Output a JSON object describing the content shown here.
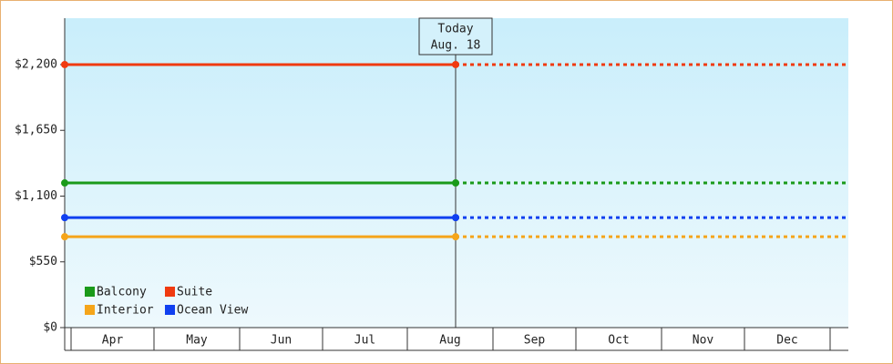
{
  "chart_data": {
    "type": "line",
    "annotation": {
      "title": "Today",
      "date": "Aug. 18"
    },
    "categories": [
      "Apr",
      "May",
      "Jun",
      "Jul",
      "Aug",
      "Sep",
      "Oct",
      "Nov",
      "Dec"
    ],
    "series": [
      {
        "name": "Balcony",
        "color": "#1a9a1a",
        "value": 1210
      },
      {
        "name": "Suite",
        "color": "#f03a10",
        "value": 2200
      },
      {
        "name": "Interior",
        "color": "#f5a51a",
        "value": 760
      },
      {
        "name": "Ocean View",
        "color": "#1040f0",
        "value": 920
      }
    ],
    "ylim": [
      0,
      2588
    ],
    "yticks": [
      {
        "value": 0,
        "label": "$0"
      },
      {
        "value": 550,
        "label": "$550"
      },
      {
        "value": 1100,
        "label": "$1,100"
      },
      {
        "value": 1650,
        "label": "$1,650"
      },
      {
        "value": 2200,
        "label": "$2,200"
      }
    ],
    "legend": "bottom-left"
  }
}
